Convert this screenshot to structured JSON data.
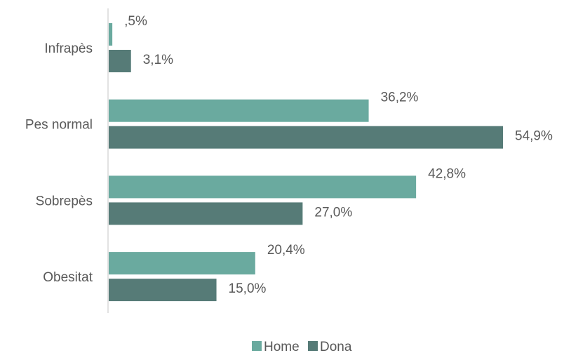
{
  "chart_data": {
    "type": "bar",
    "orientation": "horizontal",
    "categories": [
      "Infrapès",
      "Pes normal",
      "Sobrepès",
      "Obesitat"
    ],
    "series": [
      {
        "name": "Home",
        "values": [
          0.5,
          36.2,
          42.8,
          20.4
        ],
        "labels": [
          ",5%",
          "36,2%",
          "42,8%",
          "20,4%"
        ]
      },
      {
        "name": "Dona",
        "values": [
          3.1,
          54.9,
          27.0,
          15.0
        ],
        "labels": [
          "3,1%",
          "54,9%",
          "27,0%",
          "15,0%"
        ]
      }
    ],
    "xlim": [
      0,
      54.9
    ],
    "grid": false,
    "legend_position": "bottom",
    "colors": {
      "Home": "#6aaa9f",
      "Dona": "#567b77",
      "axis": "#d9d9d9",
      "text": "#595959"
    }
  }
}
